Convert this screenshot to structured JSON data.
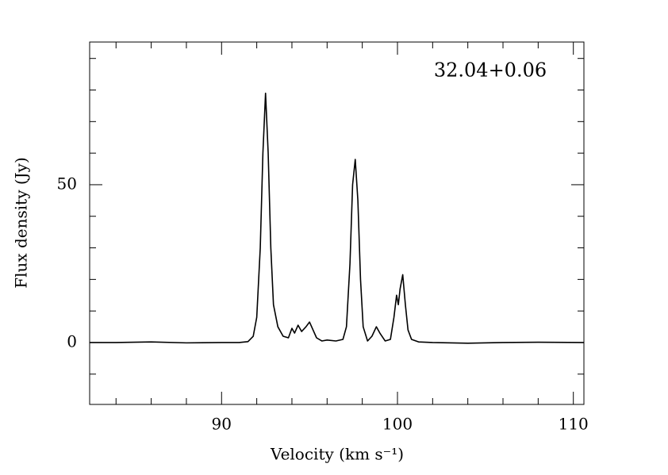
{
  "chart_data": {
    "type": "line",
    "annotation": "32.04+0.06",
    "xlabel": "Velocity (km s⁻¹)",
    "ylabel": "Flux density (Jy)",
    "xlim": [
      82.5,
      110.6
    ],
    "xticks": [
      90,
      100,
      110
    ],
    "xminor": [
      84,
      86,
      88,
      92,
      94,
      96,
      98,
      102,
      104,
      106,
      108
    ],
    "ylim": [
      -19.6,
      95.2
    ],
    "yticks": [
      0,
      50
    ],
    "yminor": [
      -10,
      10,
      20,
      30,
      40,
      60,
      70,
      80,
      90
    ],
    "color": "#000000",
    "x": [
      82.5,
      84,
      86,
      88,
      90,
      91,
      91.5,
      91.8,
      92.0,
      92.2,
      92.35,
      92.5,
      92.65,
      92.8,
      92.95,
      93.2,
      93.5,
      93.8,
      94.0,
      94.15,
      94.35,
      94.55,
      94.8,
      95.0,
      95.2,
      95.4,
      95.7,
      96,
      96.5,
      96.9,
      97.1,
      97.3,
      97.45,
      97.6,
      97.75,
      97.9,
      98.05,
      98.3,
      98.55,
      98.8,
      99.0,
      99.3,
      99.6,
      99.8,
      99.95,
      100.05,
      100.15,
      100.3,
      100.45,
      100.6,
      100.8,
      101.2,
      102,
      104,
      106,
      108,
      110.6
    ],
    "values": [
      0,
      0,
      0.2,
      -0.1,
      0,
      0,
      0.3,
      2,
      8,
      30,
      60,
      79,
      60,
      30,
      12,
      5,
      2,
      1.5,
      4.5,
      3,
      5.5,
      3.5,
      5,
      6.5,
      4,
      1.5,
      0.5,
      0.8,
      0.5,
      1,
      5,
      25,
      50,
      58,
      45,
      20,
      5,
      0.5,
      2,
      5,
      3,
      0.5,
      1,
      8,
      15,
      12,
      17,
      21.5,
      12,
      4,
      1,
      0.2,
      0,
      -0.2,
      0,
      0.1,
      0
    ]
  }
}
